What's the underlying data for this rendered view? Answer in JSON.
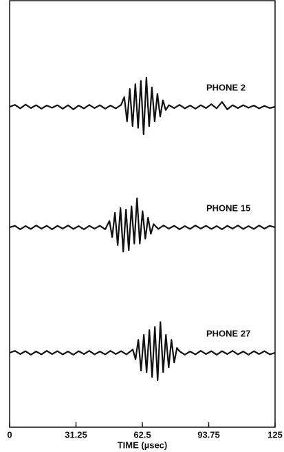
{
  "chart_data": {
    "type": "line",
    "xlabel": "TIME (µsec)",
    "xlim": [
      0,
      125
    ],
    "xticks": [
      0,
      31.25,
      62.5,
      93.75,
      125
    ],
    "ylim": [
      -1,
      1
    ],
    "color": "#111111",
    "series": [
      {
        "name": "PHONE 2",
        "x": [
          0,
          2.5,
          5,
          7.5,
          10,
          12.5,
          15,
          17.5,
          20,
          22.5,
          25,
          27.5,
          30,
          32.5,
          35,
          37.5,
          40,
          42.5,
          45,
          47.5,
          50,
          52.5,
          54,
          55.3,
          56.6,
          57.9,
          59.2,
          60.5,
          61.8,
          63.1,
          64.4,
          65.7,
          67,
          68.3,
          69.6,
          70.9,
          72.2,
          73.5,
          75,
          77.5,
          80,
          82.5,
          85,
          87.5,
          90,
          92.5,
          95,
          97.5,
          100,
          102.5,
          105,
          107.5,
          110,
          112.5,
          115,
          117.5,
          120,
          122.5,
          125
        ],
        "values": [
          0,
          0.06,
          -0.05,
          0.07,
          -0.04,
          0.05,
          -0.06,
          0.04,
          -0.03,
          0.05,
          -0.06,
          0.05,
          -0.08,
          0.04,
          -0.05,
          0.06,
          -0.04,
          0.05,
          -0.06,
          0.04,
          -0.05,
          0.06,
          0.3,
          -0.45,
          0.55,
          -0.6,
          0.7,
          -0.65,
          0.8,
          -0.85,
          0.9,
          -0.6,
          0.6,
          -0.45,
          0.4,
          -0.3,
          0.2,
          -0.1,
          0.05,
          -0.04,
          0.06,
          -0.05,
          0.04,
          -0.06,
          0.05,
          -0.04,
          0.08,
          -0.05,
          0.15,
          -0.08,
          0.05,
          -0.04,
          0.05,
          -0.03,
          0.04,
          -0.05,
          0.03,
          -0.04,
          0
        ]
      },
      {
        "name": "PHONE 15",
        "x": [
          0,
          2.5,
          5,
          7.5,
          10,
          12.5,
          15,
          17.5,
          20,
          22.5,
          25,
          27.5,
          30,
          32.5,
          35,
          37.5,
          40,
          42.5,
          45,
          47,
          48.3,
          49.6,
          50.9,
          52.2,
          53.5,
          54.8,
          56.1,
          57.4,
          58.7,
          60,
          61.3,
          62.6,
          63.9,
          65.2,
          66.5,
          67.8,
          70,
          72.5,
          75,
          77.5,
          80,
          82.5,
          85,
          87.5,
          90,
          92.5,
          95,
          97.5,
          100,
          102.5,
          105,
          107.5,
          110,
          112.5,
          115,
          117.5,
          120,
          122.5,
          125
        ],
        "values": [
          0,
          0.05,
          -0.06,
          0.04,
          -0.05,
          0.06,
          -0.04,
          0.05,
          -0.06,
          0.05,
          -0.04,
          0.06,
          -0.05,
          0.04,
          -0.06,
          0.05,
          -0.04,
          0.05,
          -0.06,
          0.2,
          -0.3,
          0.45,
          -0.55,
          0.6,
          -0.75,
          0.55,
          -0.7,
          0.65,
          -0.5,
          0.9,
          -0.5,
          0.5,
          -0.35,
          0.3,
          -0.2,
          0.1,
          -0.05,
          0.06,
          -0.04,
          0.05,
          -0.06,
          0.04,
          -0.05,
          0.06,
          -0.04,
          0.05,
          -0.05,
          0.04,
          -0.06,
          0.05,
          -0.04,
          0.06,
          -0.05,
          0.04,
          -0.05,
          0.06,
          -0.04,
          0.05,
          0
        ]
      },
      {
        "name": "PHONE 27",
        "x": [
          0,
          2.5,
          5,
          7.5,
          10,
          12.5,
          15,
          17.5,
          20,
          22.5,
          25,
          27.5,
          30,
          32.5,
          35,
          37.5,
          40,
          42.5,
          45,
          47.5,
          50,
          52.5,
          55,
          58,
          59.3,
          60.6,
          61.9,
          63.2,
          64.5,
          65.8,
          67.1,
          68.4,
          69.7,
          71,
          72.3,
          73.6,
          74.9,
          76.2,
          77.5,
          78.8,
          80,
          82.5,
          85,
          87.5,
          90,
          92.5,
          95,
          97.5,
          100,
          102.5,
          105,
          107.5,
          110,
          112.5,
          115,
          117.5,
          120,
          122.5,
          125
        ],
        "values": [
          0,
          0.06,
          -0.04,
          0.05,
          -0.06,
          0.04,
          -0.05,
          0.06,
          -0.04,
          0.05,
          -0.05,
          0.04,
          -0.06,
          0.05,
          -0.04,
          0.06,
          -0.05,
          0.04,
          -0.05,
          0.06,
          -0.04,
          0.05,
          -0.05,
          0.1,
          -0.2,
          0.4,
          -0.55,
          0.55,
          -0.6,
          0.7,
          -0.75,
          0.8,
          -0.85,
          0.95,
          -0.6,
          0.55,
          -0.45,
          0.4,
          -0.3,
          0.15,
          0.05,
          -0.06,
          0.04,
          -0.05,
          0.06,
          -0.04,
          0.05,
          -0.06,
          0.05,
          -0.04,
          0.06,
          -0.05,
          0.04,
          -0.06,
          0.05,
          -0.04,
          0.05,
          -0.05,
          0
        ]
      }
    ]
  }
}
